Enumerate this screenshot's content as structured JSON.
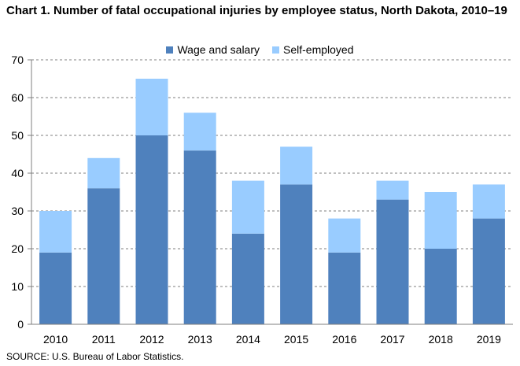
{
  "title": "Chart 1. Number of fatal occupational injuries by employee status, North Dakota, 2010–19",
  "source": "SOURCE: U.S. Bureau of Labor Statistics.",
  "colors": {
    "wage": "#4f81bd",
    "self": "#99ccff",
    "grid": "#7f7f7f",
    "axis": "#7f7f7f"
  },
  "chart_data": {
    "type": "bar",
    "stacked": true,
    "title": "Chart 1. Number of fatal occupational injuries by employee status, North Dakota, 2010–19",
    "categories": [
      "2010",
      "2011",
      "2012",
      "2013",
      "2014",
      "2015",
      "2016",
      "2017",
      "2018",
      "2019"
    ],
    "series": [
      {
        "name": "Wage and salary",
        "values": [
          19,
          36,
          50,
          46,
          24,
          37,
          19,
          33,
          20,
          28
        ]
      },
      {
        "name": "Self-employed",
        "values": [
          11,
          8,
          15,
          10,
          14,
          10,
          9,
          5,
          15,
          9
        ]
      }
    ],
    "ylim": [
      0,
      70
    ],
    "yticks": [
      "0",
      "10",
      "20",
      "30",
      "40",
      "50",
      "60",
      "70"
    ],
    "grid": true,
    "legend_position": "top"
  }
}
